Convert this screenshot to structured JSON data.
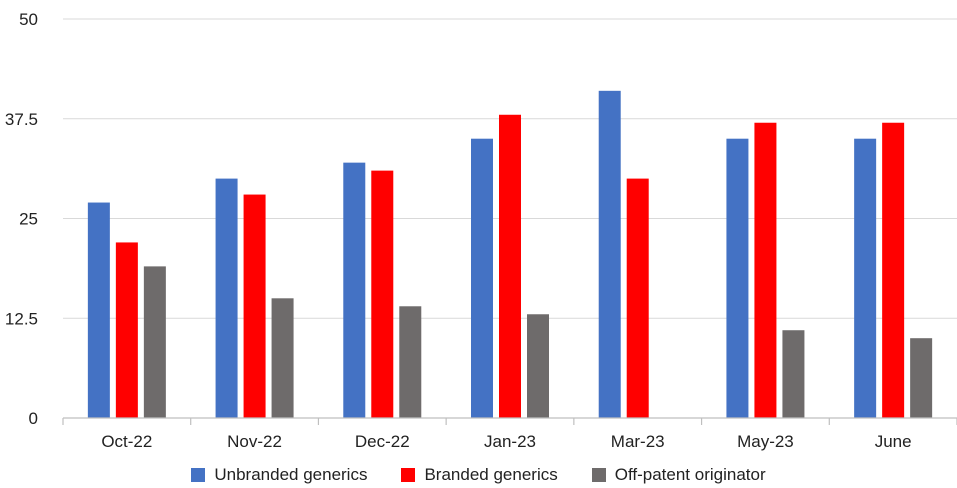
{
  "chart_data": {
    "type": "bar",
    "categories": [
      "Oct-22",
      "Nov-22",
      "Dec-22",
      "Jan-23",
      "Mar-23",
      "May-23",
      "June"
    ],
    "series": [
      {
        "name": "Unbranded generics",
        "color": "#4472C4",
        "values": [
          27,
          30,
          32,
          35,
          41,
          35,
          35
        ]
      },
      {
        "name": "Branded generics",
        "color": "#FF0000",
        "values": [
          22,
          28,
          31,
          38,
          30,
          37,
          37
        ]
      },
      {
        "name": "Off-patent originator",
        "color": "#6E6B6B",
        "values": [
          19,
          15,
          14,
          13,
          0,
          11,
          10
        ]
      }
    ],
    "yticks": [
      "0",
      "12.5",
      "25",
      "37.5",
      "50"
    ],
    "ylim": [
      0,
      50
    ],
    "grid": true,
    "legend_position": "bottom",
    "title": "",
    "xlabel": "",
    "ylabel": ""
  }
}
